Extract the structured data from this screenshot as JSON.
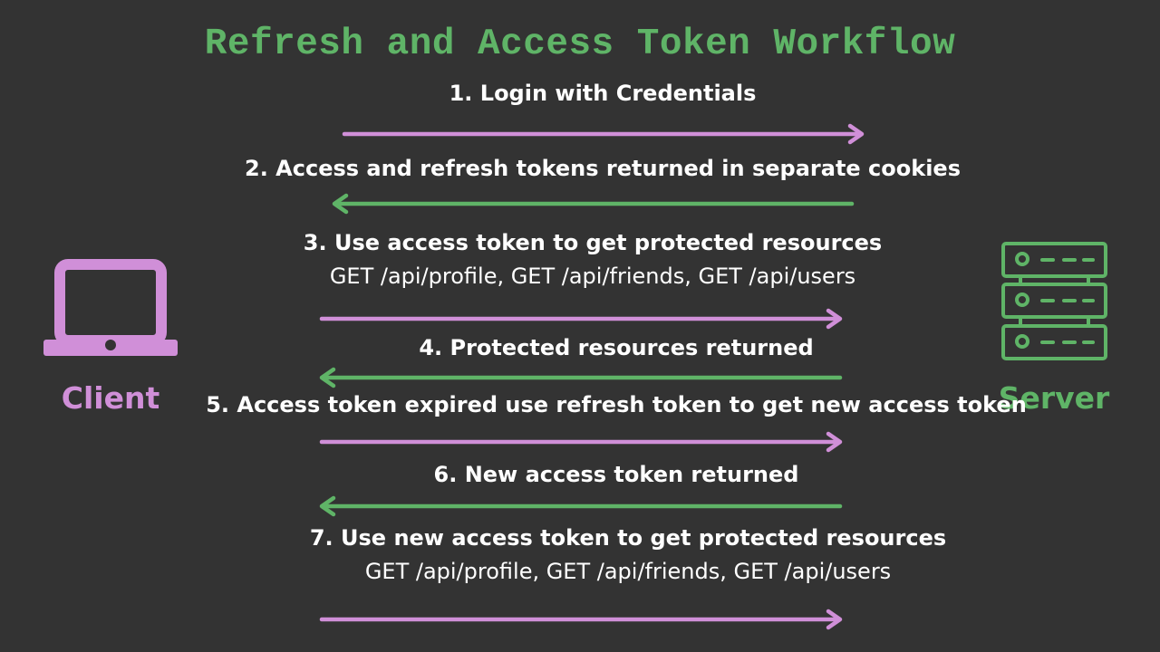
{
  "title": "Refresh and Access Token Workflow",
  "colors": {
    "background": "#333333",
    "accent_green": "#5fb467",
    "accent_purple": "#d08fd8",
    "text": "#ffffff"
  },
  "actors": {
    "client": {
      "label": "Client",
      "icon": "laptop-icon"
    },
    "server": {
      "label": "Server",
      "icon": "server-rack-icon"
    }
  },
  "steps": [
    {
      "label": "1. Login with Credentials",
      "detail": "",
      "direction": "to-server"
    },
    {
      "label": "2. Access and refresh tokens returned in separate cookies",
      "detail": "",
      "direction": "to-client"
    },
    {
      "label": "3. Use access token to get protected resources",
      "detail": "GET /api/profile, GET /api/friends, GET /api/users",
      "direction": "to-server"
    },
    {
      "label": "4. Protected resources returned",
      "detail": "",
      "direction": "to-client"
    },
    {
      "label": "5. Access token expired use refresh token to get new access token",
      "detail": "",
      "direction": "to-server"
    },
    {
      "label": "6. New access token returned",
      "detail": "",
      "direction": "to-client"
    },
    {
      "label": "7. Use new access token to get protected resources",
      "detail": "GET /api/profile, GET /api/friends, GET /api/users",
      "direction": "to-server"
    }
  ]
}
